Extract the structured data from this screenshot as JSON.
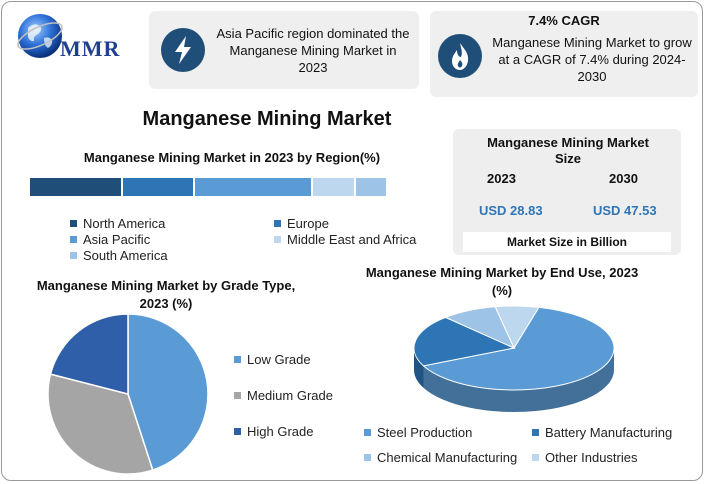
{
  "logo": {
    "text": "MMR"
  },
  "cards": {
    "region": {
      "text": "Asia Pacific region dominated the Manganese Mining Market in 2023"
    },
    "cagr": {
      "heading": "7.4% CAGR",
      "text": "Manganese Mining Market to grow at a CAGR of 7.4% during 2024-2030"
    }
  },
  "main_title": "Manganese Mining Market",
  "size_box": {
    "title": "Manganese Mining Market Size",
    "year_a": "2023",
    "year_b": "2030",
    "value_a": "USD 28.83",
    "value_b": "USD 47.53",
    "footer": "Market Size in Billion"
  },
  "colors": {
    "dark_blue": "#1f4e79",
    "mid_blue": "#2e75b6",
    "light_blue": "#5b9bd5",
    "pale_blue": "#bdd7ee",
    "sky_blue": "#9dc3e6",
    "gray": "#a5a5a5",
    "accent_value": "#2e75b6"
  },
  "chart_data": [
    {
      "type": "bar",
      "title": "Manganese Mining Market in 2023 by Region(%)",
      "categories": [
        "North America",
        "Europe",
        "Asia Pacific",
        "Middle East and Africa",
        "South America"
      ],
      "values": [
        26,
        20,
        33,
        12,
        9
      ],
      "colors": [
        "#1f4e79",
        "#2e75b6",
        "#5b9bd5",
        "#bdd7ee",
        "#9dc3e6"
      ]
    },
    {
      "type": "pie",
      "title": "Manganese Mining Market by Grade Type, 2023 (%)",
      "categories": [
        "Low Grade",
        "Medium Grade",
        "High Grade"
      ],
      "values": [
        45,
        34,
        21
      ],
      "colors": [
        "#5b9bd5",
        "#a5a5a5",
        "#2e5fa8"
      ]
    },
    {
      "type": "pie",
      "title": "Manganese Mining Market by End Use, 2023 (%)",
      "categories": [
        "Steel Production",
        "Battery Manufacturing",
        "Chemical Manufacturing",
        "Other Industries"
      ],
      "values": [
        64,
        20,
        9,
        7
      ],
      "colors": [
        "#5b9bd5",
        "#2e75b6",
        "#9dc3e6",
        "#bdd7ee"
      ]
    }
  ]
}
